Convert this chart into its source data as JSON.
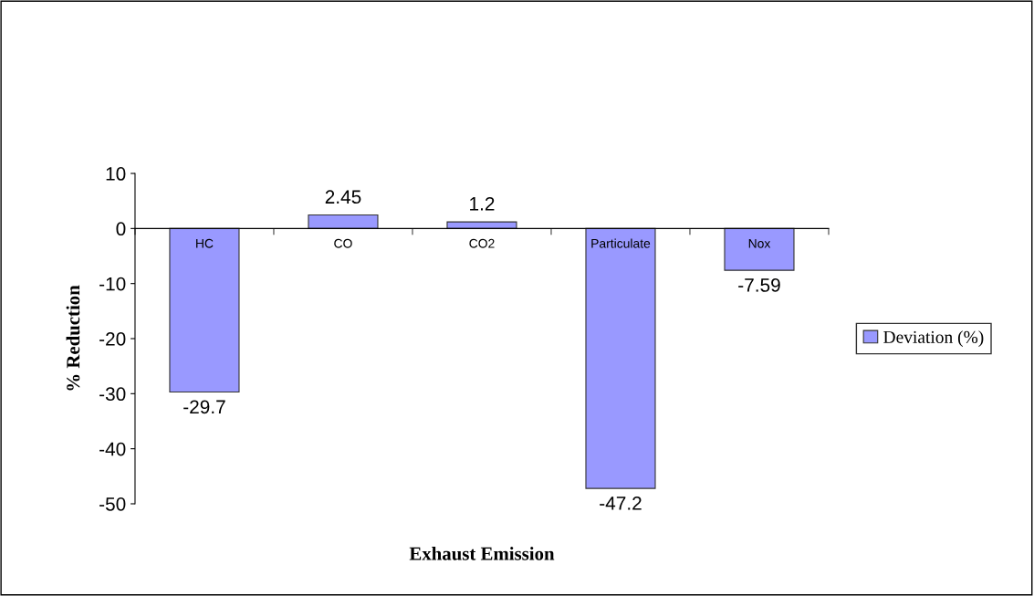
{
  "chart_data": {
    "type": "bar",
    "xlabel": "Exhaust Emission",
    "ylabel": "% Reduction",
    "categories": [
      "HC",
      "CO",
      "CO2",
      "Particulate",
      "Nox"
    ],
    "series": [
      {
        "name": "Deviation (%)",
        "color": "#9999ff",
        "values": [
          -29.7,
          2.45,
          1.2,
          -47.2,
          -7.59
        ]
      }
    ],
    "ylim": [
      -50,
      10
    ],
    "yticks": [
      -50,
      -40,
      -30,
      -20,
      -10,
      0,
      10
    ],
    "data_labels": true,
    "legend": "right",
    "grid": false
  }
}
